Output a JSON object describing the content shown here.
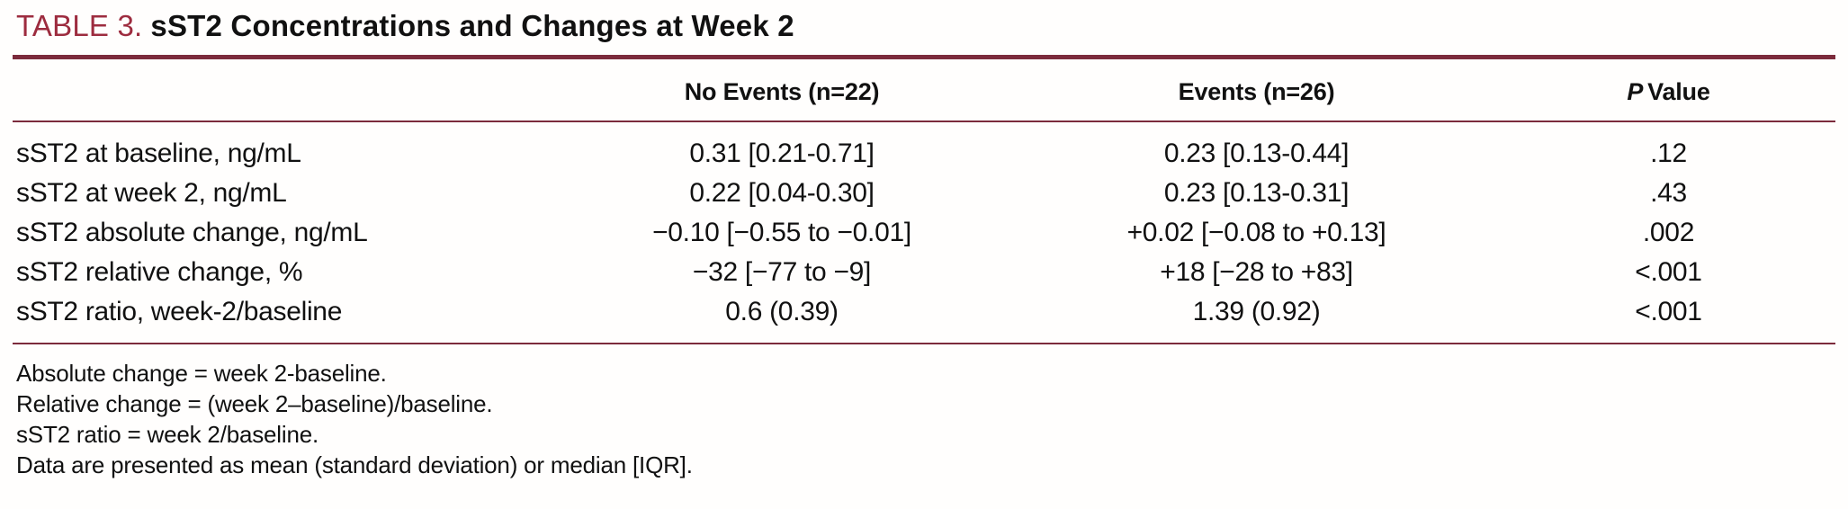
{
  "table": {
    "title_label": "TABLE 3.",
    "title_text": "sST2 Concentrations and Changes at Week 2",
    "columns": {
      "label": "",
      "no_events": "No Events (n=22)",
      "events": "Events (n=26)",
      "p_italic": "P",
      "p_rest": "Value"
    },
    "rows": [
      {
        "label": "sST2 at baseline, ng/mL",
        "no_events": "0.31 [0.21-0.71]",
        "events": "0.23 [0.13-0.44]",
        "p_value": ".12"
      },
      {
        "label": "sST2 at week 2, ng/mL",
        "no_events": "0.22 [0.04-0.30]",
        "events": "0.23 [0.13-0.31]",
        "p_value": ".43"
      },
      {
        "label": "sST2 absolute change, ng/mL",
        "no_events": "−0.10 [−0.55 to −0.01]",
        "events": "+0.02 [−0.08 to +0.13]",
        "p_value": ".002"
      },
      {
        "label": "sST2 relative change, %",
        "no_events": "−32 [−77 to −9]",
        "events": "+18 [−28 to +83]",
        "p_value": "<.001"
      },
      {
        "label": "sST2 ratio, week-2/baseline",
        "no_events": "0.6 (0.39)",
        "events": "1.39 (0.92)",
        "p_value": "<.001"
      }
    ],
    "footnotes": [
      "Absolute change = week 2-baseline.",
      "Relative change = (week 2–baseline)/baseline.",
      "sST2 ratio = week 2/baseline.",
      "Data are presented as mean (standard deviation) or median [IQR]."
    ]
  },
  "colors": {
    "accent_red": "#9d2c3f",
    "rule_maroon": "#7c2b3c",
    "text_black": "#111111",
    "background": "#fffefd"
  }
}
